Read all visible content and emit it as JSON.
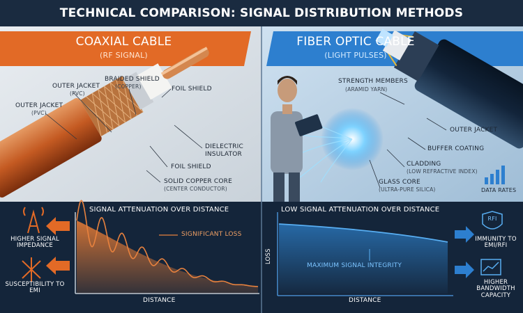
{
  "header": {
    "title": "TECHNICAL COMPARISON: SIGNAL DISTRIBUTION METHODS"
  },
  "coax": {
    "title": "COAXIAL CABLE",
    "subtitle": "(RF SIGNAL)",
    "labels": [
      {
        "title": "BRAIDED SHIELD",
        "sub": "(COPPER)"
      },
      {
        "title": "OUTER JACKET",
        "sub": "(PVC)"
      },
      {
        "title": "OUTER JACKET",
        "sub": "(PVC)"
      },
      {
        "title": "FOIL SHIELD"
      },
      {
        "title": "DIELECTRIC",
        "sub": "INSULATOR"
      },
      {
        "title": "FOIL SHIELD"
      },
      {
        "title": "SOLID COPPER CORE",
        "sub": "(CENTER CONDUCTOR)"
      }
    ],
    "chart": {
      "title": "SIGNAL ATTENUATION OVER DISTANCE",
      "annotation": "SIGNIFICANT LOSS",
      "x_label": "DISTANCE"
    },
    "notes": [
      "HIGHER SIGNAL IMPEDANCE",
      "SUSCEPTIBILITY TO EMI"
    ]
  },
  "fiber": {
    "title": "FIBER OPTIC CABLE",
    "subtitle": "(LIGHT PULSES)",
    "labels": [
      {
        "title": "STRENGTH MEMBERS",
        "sub": "(ARAMID YARN)"
      },
      {
        "title": "OUTER JACKET"
      },
      {
        "title": "BUFFER COATING"
      },
      {
        "title": "CLADDING",
        "sub": "(LOW REFRACTIVE INDEX)"
      },
      {
        "title": "GLASS CORE",
        "sub": "(ULTRA-PURE SILICA)"
      },
      {
        "title": "DATA RATES"
      }
    ],
    "chart": {
      "title": "LOW SIGNAL ATTENUATION OVER DISTANCE",
      "y_label": "LOSS",
      "annotation": "MAXIMUM SIGNAL INTEGRITY",
      "x_label": "DISTANCE"
    },
    "icon": "RFI",
    "notes": [
      "IMMUNITY TO EMI/RFI",
      "HIGHER BANDWIDTH CAPACITY"
    ]
  }
}
